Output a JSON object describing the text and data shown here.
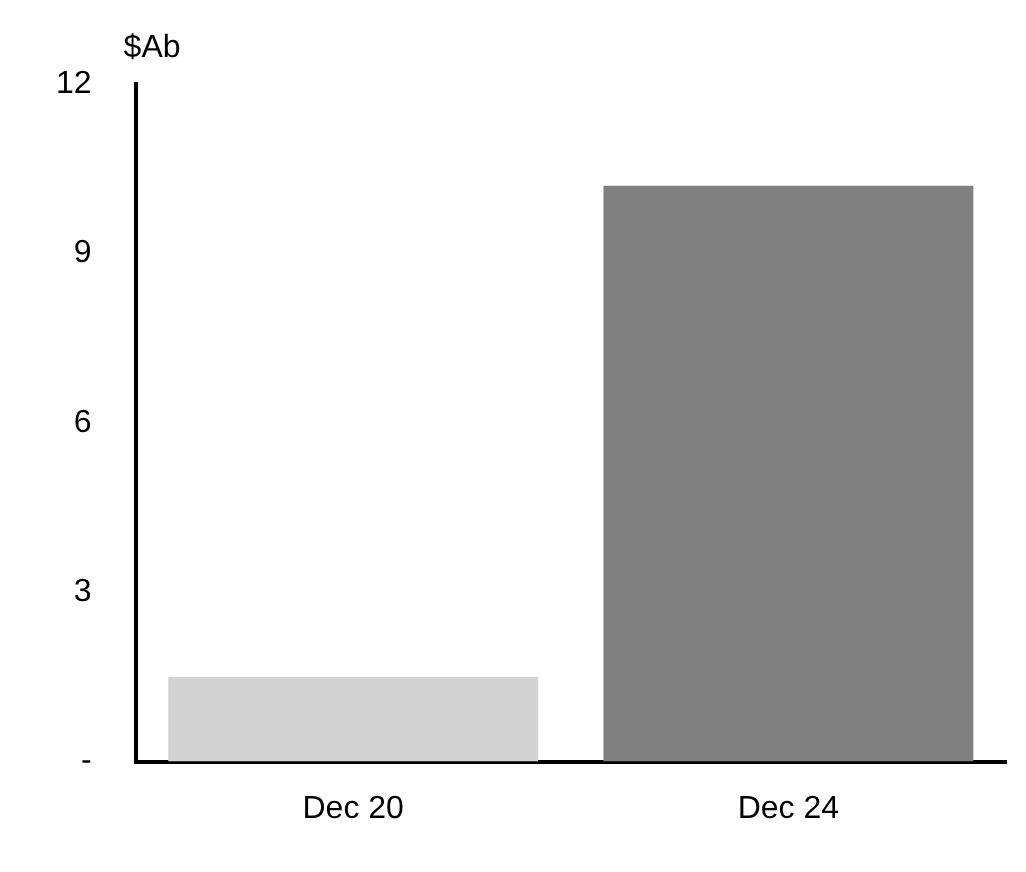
{
  "chart_data": {
    "type": "bar",
    "ylabel": "$Ab",
    "categories": [
      "Dec 20",
      "Dec 24"
    ],
    "values": [
      1.5,
      10.2
    ],
    "colors": [
      "#d3d3d3",
      "#808080"
    ],
    "ylim": [
      0,
      12
    ],
    "yticks": [
      {
        "value": 0,
        "label": "-"
      },
      3,
      6,
      9,
      12
    ],
    "grid": false,
    "legend": false
  }
}
